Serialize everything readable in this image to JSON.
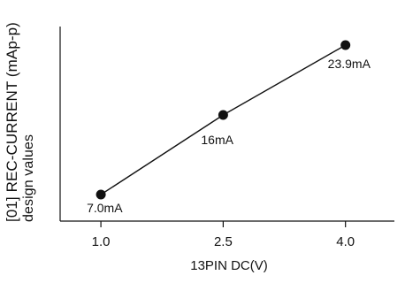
{
  "chart_data": {
    "type": "line",
    "title": "",
    "xlabel": "13PIN DC(V)",
    "ylabel_line1": "[01] REC-CURRENT (mAp-p)",
    "ylabel_line2": "design values",
    "x_ticks": [
      "1.0",
      "2.5",
      "4.0"
    ],
    "xlim": [
      0.5,
      4.6
    ],
    "ylim": [
      4.0,
      26.0
    ],
    "grid": false,
    "series": [
      {
        "values": [
          {
            "x": 1.0,
            "y": 7.0,
            "label": "7.0mA"
          },
          {
            "x": 2.5,
            "y": 16.0,
            "label": "16mA"
          },
          {
            "x": 4.0,
            "y": 23.9,
            "label": "23.9mA"
          }
        ]
      }
    ],
    "colors": {
      "line": "#111111",
      "marker": "#111111"
    }
  }
}
